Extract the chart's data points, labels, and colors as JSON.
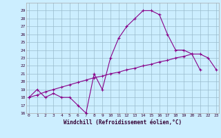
{
  "xlabel": "Windchill (Refroidissement éolien,°C)",
  "x": [
    0,
    1,
    2,
    3,
    4,
    5,
    6,
    7,
    8,
    9,
    10,
    11,
    12,
    13,
    14,
    15,
    16,
    17,
    18,
    19,
    20,
    21,
    22,
    23
  ],
  "y_curve": [
    18,
    19,
    18,
    18.5,
    18,
    18,
    17,
    16,
    21,
    19,
    23,
    25.5,
    27,
    28,
    29,
    29,
    28.5,
    26,
    24,
    24,
    23.5,
    21.5,
    null,
    null
  ],
  "y_straight": [
    18,
    18.3,
    18.7,
    19.0,
    19.3,
    19.6,
    19.9,
    20.2,
    20.5,
    20.7,
    21.0,
    21.2,
    21.5,
    21.7,
    22.0,
    22.2,
    22.5,
    22.7,
    23.0,
    23.2,
    23.5,
    23.5,
    23.0,
    21.5
  ],
  "ylim": [
    16,
    30
  ],
  "xlim": [
    0,
    23
  ],
  "bg_color": "#cceeff",
  "grid_color": "#99bbcc",
  "line_color": "#880088"
}
